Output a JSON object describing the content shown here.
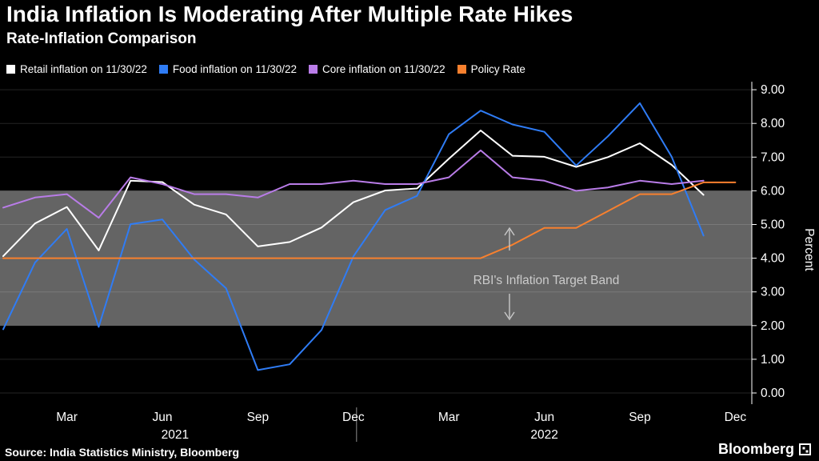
{
  "header": {
    "title": "India Inflation Is Moderating After Multiple Rate Hikes",
    "subtitle": "Rate-Inflation Comparison"
  },
  "chart_data": {
    "type": "line",
    "title": "India Inflation Is Moderating After Multiple Rate Hikes",
    "subtitle": "Rate-Inflation Comparison",
    "ylabel": "Percent",
    "ylim": [
      0,
      9
    ],
    "y_ticks": [
      "0.00",
      "1.00",
      "2.00",
      "3.00",
      "4.00",
      "5.00",
      "6.00",
      "7.00",
      "8.00",
      "9.00"
    ],
    "x_tick_labels": [
      "Mar",
      "Jun",
      "Sep",
      "Dec",
      "Mar",
      "Jun",
      "Sep",
      "Dec"
    ],
    "x_tick_month_index": [
      2,
      5,
      8,
      11,
      14,
      17,
      20,
      23
    ],
    "x_range_months": "Jan 2021 - Dec 2022",
    "year_labels": [
      {
        "label": "2021",
        "center_month_index": 5.4
      },
      {
        "label": "2022",
        "center_month_index": 17
      }
    ],
    "band": {
      "from": 2,
      "to": 6,
      "label": "RBI's Inflation Target Band"
    },
    "series": [
      {
        "id": "retail",
        "name": "Retail inflation on 11/30/22",
        "color": "#ffffff",
        "values": [
          4.06,
          5.03,
          5.52,
          4.23,
          6.3,
          6.26,
          5.59,
          5.3,
          4.35,
          4.48,
          4.91,
          5.66,
          6.01,
          6.07,
          6.95,
          7.79,
          7.04,
          7.01,
          6.71,
          7.0,
          7.41,
          6.77,
          5.88
        ]
      },
      {
        "id": "food",
        "name": "Food inflation on 11/30/22",
        "color": "#2f7cf5",
        "values": [
          1.89,
          3.87,
          4.87,
          1.96,
          5.01,
          5.15,
          3.96,
          3.11,
          0.68,
          0.85,
          1.87,
          4.05,
          5.43,
          5.85,
          7.68,
          8.38,
          7.97,
          7.75,
          6.75,
          7.62,
          8.6,
          7.01,
          4.67
        ]
      },
      {
        "id": "core",
        "name": "Core inflation on 11/30/22",
        "color": "#b97ce8",
        "values": [
          5.5,
          5.8,
          5.9,
          5.2,
          6.4,
          6.2,
          5.9,
          5.9,
          5.8,
          6.2,
          6.2,
          6.3,
          6.2,
          6.2,
          6.4,
          7.2,
          6.4,
          6.3,
          6.0,
          6.1,
          6.3,
          6.2,
          6.3
        ]
      },
      {
        "id": "policy_rate",
        "name": "Policy Rate",
        "color": "#f8802e",
        "values": [
          4.0,
          4.0,
          4.0,
          4.0,
          4.0,
          4.0,
          4.0,
          4.0,
          4.0,
          4.0,
          4.0,
          4.0,
          4.0,
          4.0,
          4.0,
          4.0,
          4.4,
          4.9,
          4.9,
          5.4,
          5.9,
          5.9,
          6.25,
          6.25
        ]
      }
    ],
    "grid": true,
    "legend_position": "top"
  },
  "footer": {
    "source": "Source: India Statistics Ministry, Bloomberg",
    "brand": "Bloomberg"
  }
}
